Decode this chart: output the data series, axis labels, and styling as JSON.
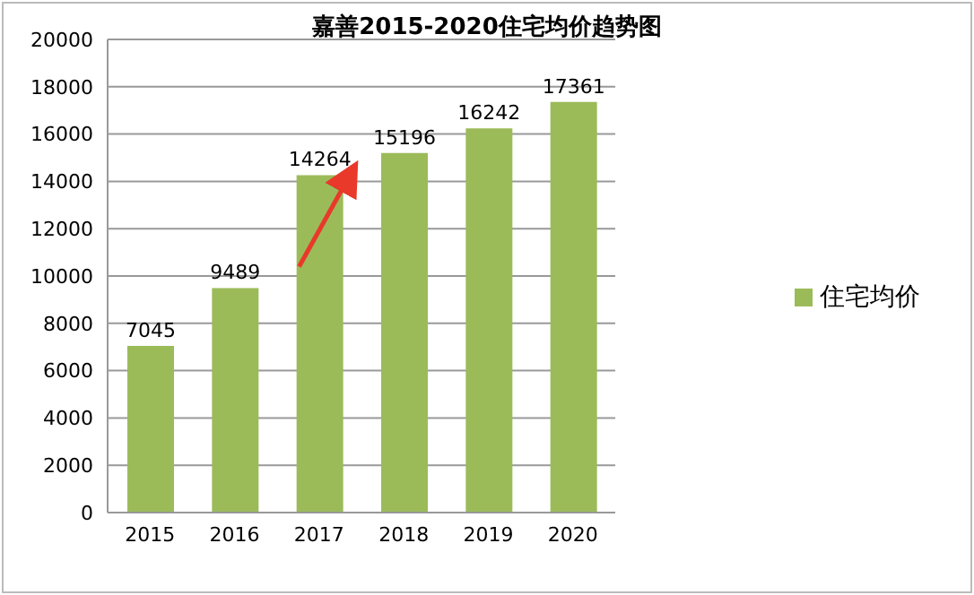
{
  "chart_data": {
    "type": "bar",
    "title": "嘉善2015-2020住宅均价趋势图",
    "categories": [
      "2015",
      "2016",
      "2017",
      "2018",
      "2019",
      "2020"
    ],
    "series": [
      {
        "name": "住宅均价",
        "color": "#9bbb59",
        "values": [
          7045,
          9489,
          14264,
          15196,
          16242,
          17361
        ]
      }
    ],
    "ylim": [
      0,
      20000
    ],
    "yticks": [
      0,
      2000,
      4000,
      6000,
      8000,
      10000,
      12000,
      14000,
      16000,
      18000,
      20000
    ],
    "grid": "y",
    "legend": "right",
    "data_labels": true
  }
}
